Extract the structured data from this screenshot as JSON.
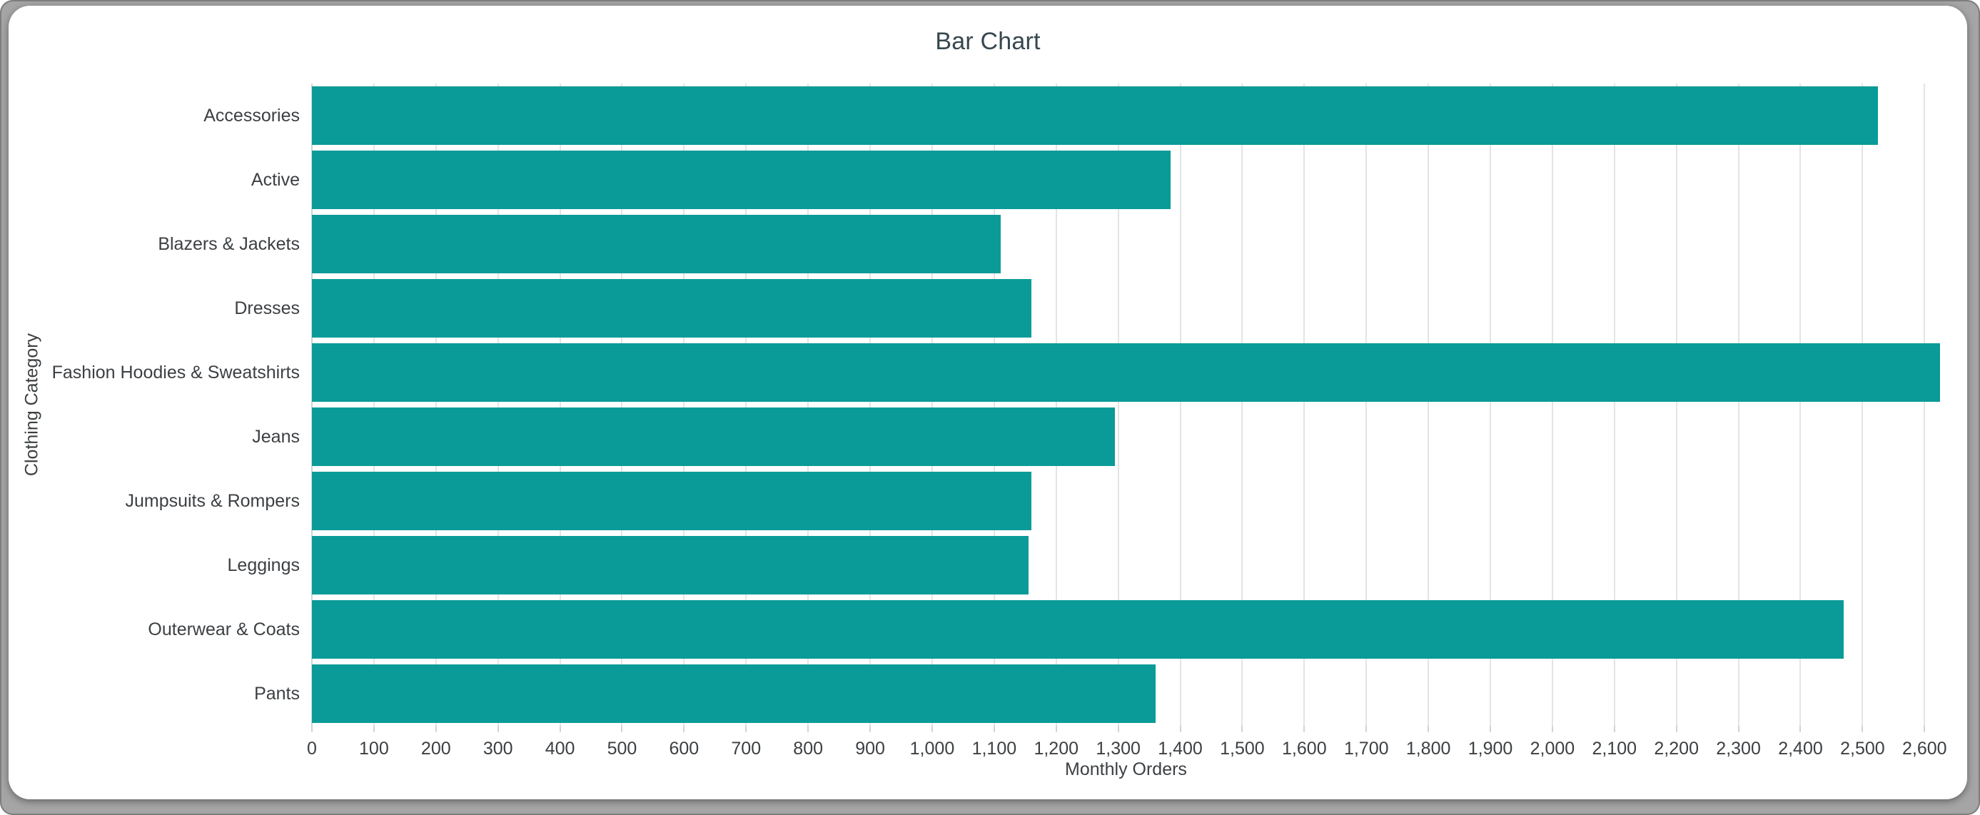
{
  "window": {
    "background_color": "#a5a5a5",
    "card_color": "#ffffff"
  },
  "colors": {
    "bar": "#0a9b98",
    "gridline": "#e4e4e4",
    "axis_line": "#ccd6dc",
    "title_text": "#37474f",
    "label_text": "#3c4043"
  },
  "chart_data": {
    "type": "bar",
    "orientation": "horizontal",
    "title": "Bar Chart",
    "xlabel": "Monthly Orders",
    "ylabel": "Clothing Category",
    "categories": [
      "Accessories",
      "Active",
      "Blazers & Jackets",
      "Dresses",
      "Fashion Hoodies & Sweatshirts",
      "Jeans",
      "Jumpsuits & Rompers",
      "Leggings",
      "Outerwear & Coats",
      "Pants"
    ],
    "values": [
      2525,
      1385,
      1110,
      1160,
      2625,
      1295,
      1160,
      1155,
      2470,
      1360
    ],
    "xlim": [
      0,
      2625
    ],
    "x_tick_step": 100,
    "x_tick_format": "thousands-comma",
    "grid": true,
    "legend": "none",
    "bar_color": "#0a9b98"
  }
}
